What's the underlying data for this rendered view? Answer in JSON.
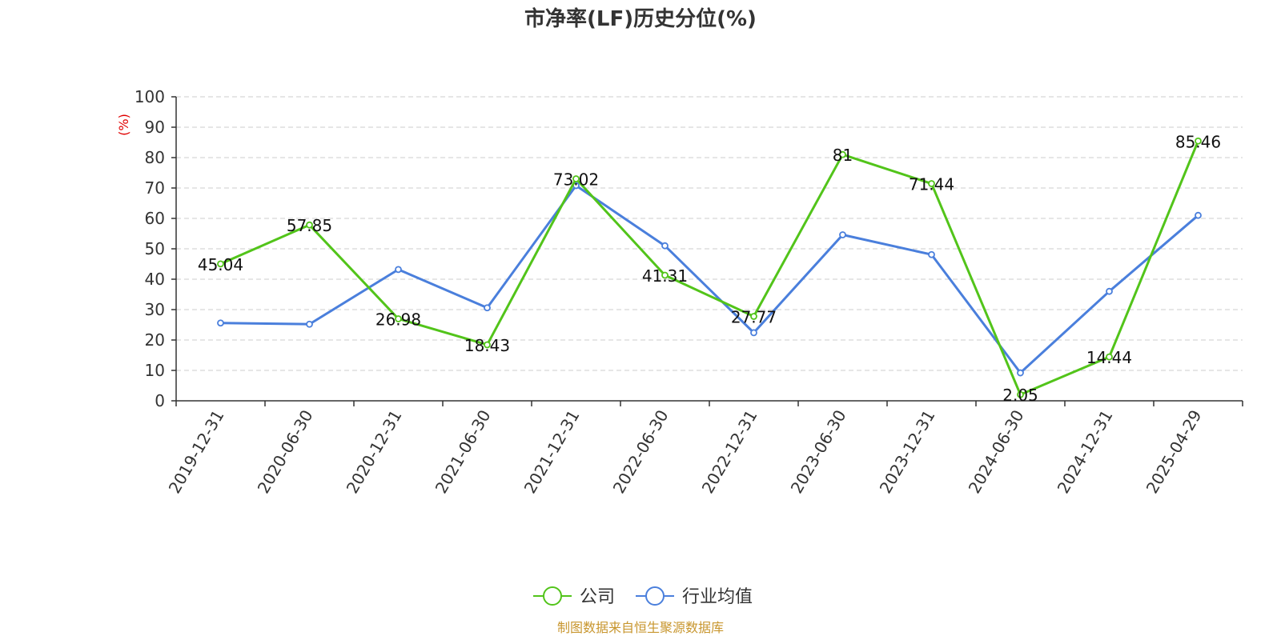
{
  "colors": {
    "company": "#52c41a",
    "industry": "#4a7fdc",
    "grid": "#cccccc",
    "axis": "#333333",
    "unit": "#e00000",
    "source": "#c8962e"
  },
  "chart_data": {
    "type": "line",
    "title": "市净率(LF)历史分位(%)",
    "ylabel": "(%)",
    "xlabel": "",
    "ylim": [
      0,
      100
    ],
    "yticks": [
      0,
      10,
      20,
      30,
      40,
      50,
      60,
      70,
      80,
      90,
      100
    ],
    "grid": true,
    "legend_position": "bottom-center",
    "categories": [
      "2019-12-31",
      "2020-06-30",
      "2020-12-31",
      "2021-06-30",
      "2021-12-31",
      "2022-06-30",
      "2022-12-31",
      "2023-06-30",
      "2023-12-31",
      "2024-06-30",
      "2024-12-31",
      "2025-04-29"
    ],
    "series": [
      {
        "name": "公司",
        "color": "#52c41a",
        "values": [
          45.04,
          57.85,
          26.98,
          18.43,
          73.02,
          41.31,
          27.77,
          81,
          71.44,
          2.05,
          14.44,
          85.46
        ],
        "labels": [
          "45.04",
          "57.85",
          "26.98",
          "18.43",
          "73.02",
          "41.31",
          "27.77",
          "81",
          "71.44",
          "2.05",
          "14.44",
          "85.46"
        ]
      },
      {
        "name": "行业均值",
        "color": "#4a7fdc",
        "values": [
          25.6,
          25.2,
          43.2,
          30.6,
          70.8,
          51.0,
          22.4,
          54.6,
          48.1,
          9.2,
          36.0,
          61.0
        ]
      }
    ]
  },
  "source": "制图数据来自恒生聚源数据库"
}
